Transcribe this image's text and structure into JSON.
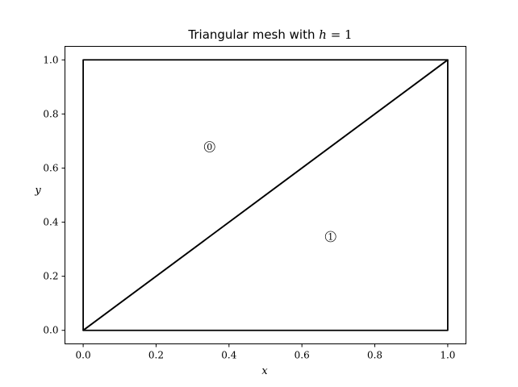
{
  "chart_data": {
    "type": "mesh",
    "title_text": "Triangular mesh with ",
    "title_math": "h",
    "title_eq": " = 1",
    "xlabel": "x",
    "ylabel": "y",
    "xlim": [
      -0.05,
      1.05
    ],
    "ylim": [
      -0.05,
      1.05
    ],
    "xticks": [
      0.0,
      0.2,
      0.4,
      0.6,
      0.8,
      1.0
    ],
    "yticks": [
      0.0,
      0.2,
      0.4,
      0.6,
      0.8,
      1.0
    ],
    "xtick_labels": [
      "0.0",
      "0.2",
      "0.4",
      "0.6",
      "0.8",
      "1.0"
    ],
    "ytick_labels": [
      "0.0",
      "0.2",
      "0.4",
      "0.6",
      "0.8",
      "1.0"
    ],
    "grid": false,
    "line_color": "#000000",
    "nodes": [
      [
        0,
        0
      ],
      [
        1,
        0
      ],
      [
        1,
        1
      ],
      [
        0,
        1
      ]
    ],
    "triangles": [
      {
        "id": "0",
        "vertices": [
          0,
          2,
          3
        ],
        "label_at": [
          0.3467,
          0.6787
        ]
      },
      {
        "id": "1",
        "vertices": [
          0,
          1,
          2
        ],
        "label_at": [
          0.6787,
          0.3467
        ]
      }
    ]
  }
}
